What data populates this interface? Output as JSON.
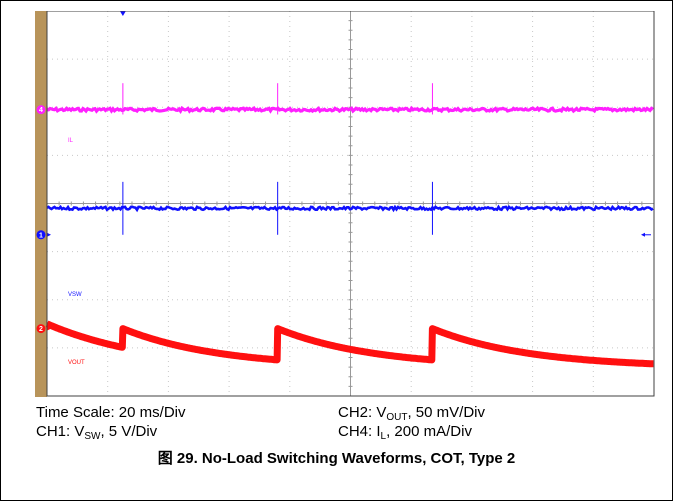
{
  "chart_data": {
    "type": "line",
    "title": "图 29. No-Load Switching Waveforms, COT, Type 2",
    "grid": true,
    "divisions": {
      "x": 10,
      "y": 8
    },
    "series": [
      {
        "name": "IL",
        "color": "#ff20ff",
        "kind": "flat",
        "level_div": 2.05,
        "noise_div": 0.03,
        "marker": "4"
      },
      {
        "name": "VSW",
        "color": "#1010ff",
        "kind": "flat",
        "level_div": 4.1,
        "noise_div": 0.03,
        "marker": "1"
      },
      {
        "name": "VOUT",
        "color": "#ff1010",
        "kind": "sawtooth",
        "start_div": 6.6,
        "drop_div": 0.65,
        "period_div": 2.55,
        "first_spike_div": 1.25,
        "marker": "2"
      }
    ],
    "spikes_x_div": [
      1.25,
      3.8,
      6.35
    ],
    "labels": {
      "il": "IL",
      "vsw": "VSW",
      "vout": "VOUT"
    },
    "trigger_marker_x_div": 1.25
  },
  "captions": {
    "time_scale": "Time Scale: 20 ms/Div",
    "ch1_prefix": "CH1: V",
    "ch1_sub": "SW",
    "ch1_suffix": ", 5 V/Div",
    "ch2_prefix": "CH2: V",
    "ch2_sub": "OUT",
    "ch2_suffix": ", 50 mV/Div",
    "ch4_prefix": "CH4: I",
    "ch4_sub": "L",
    "ch4_suffix": ", 200 mA/Div"
  },
  "figure_title": "图 29. No-Load Switching Waveforms, COT, Type 2"
}
